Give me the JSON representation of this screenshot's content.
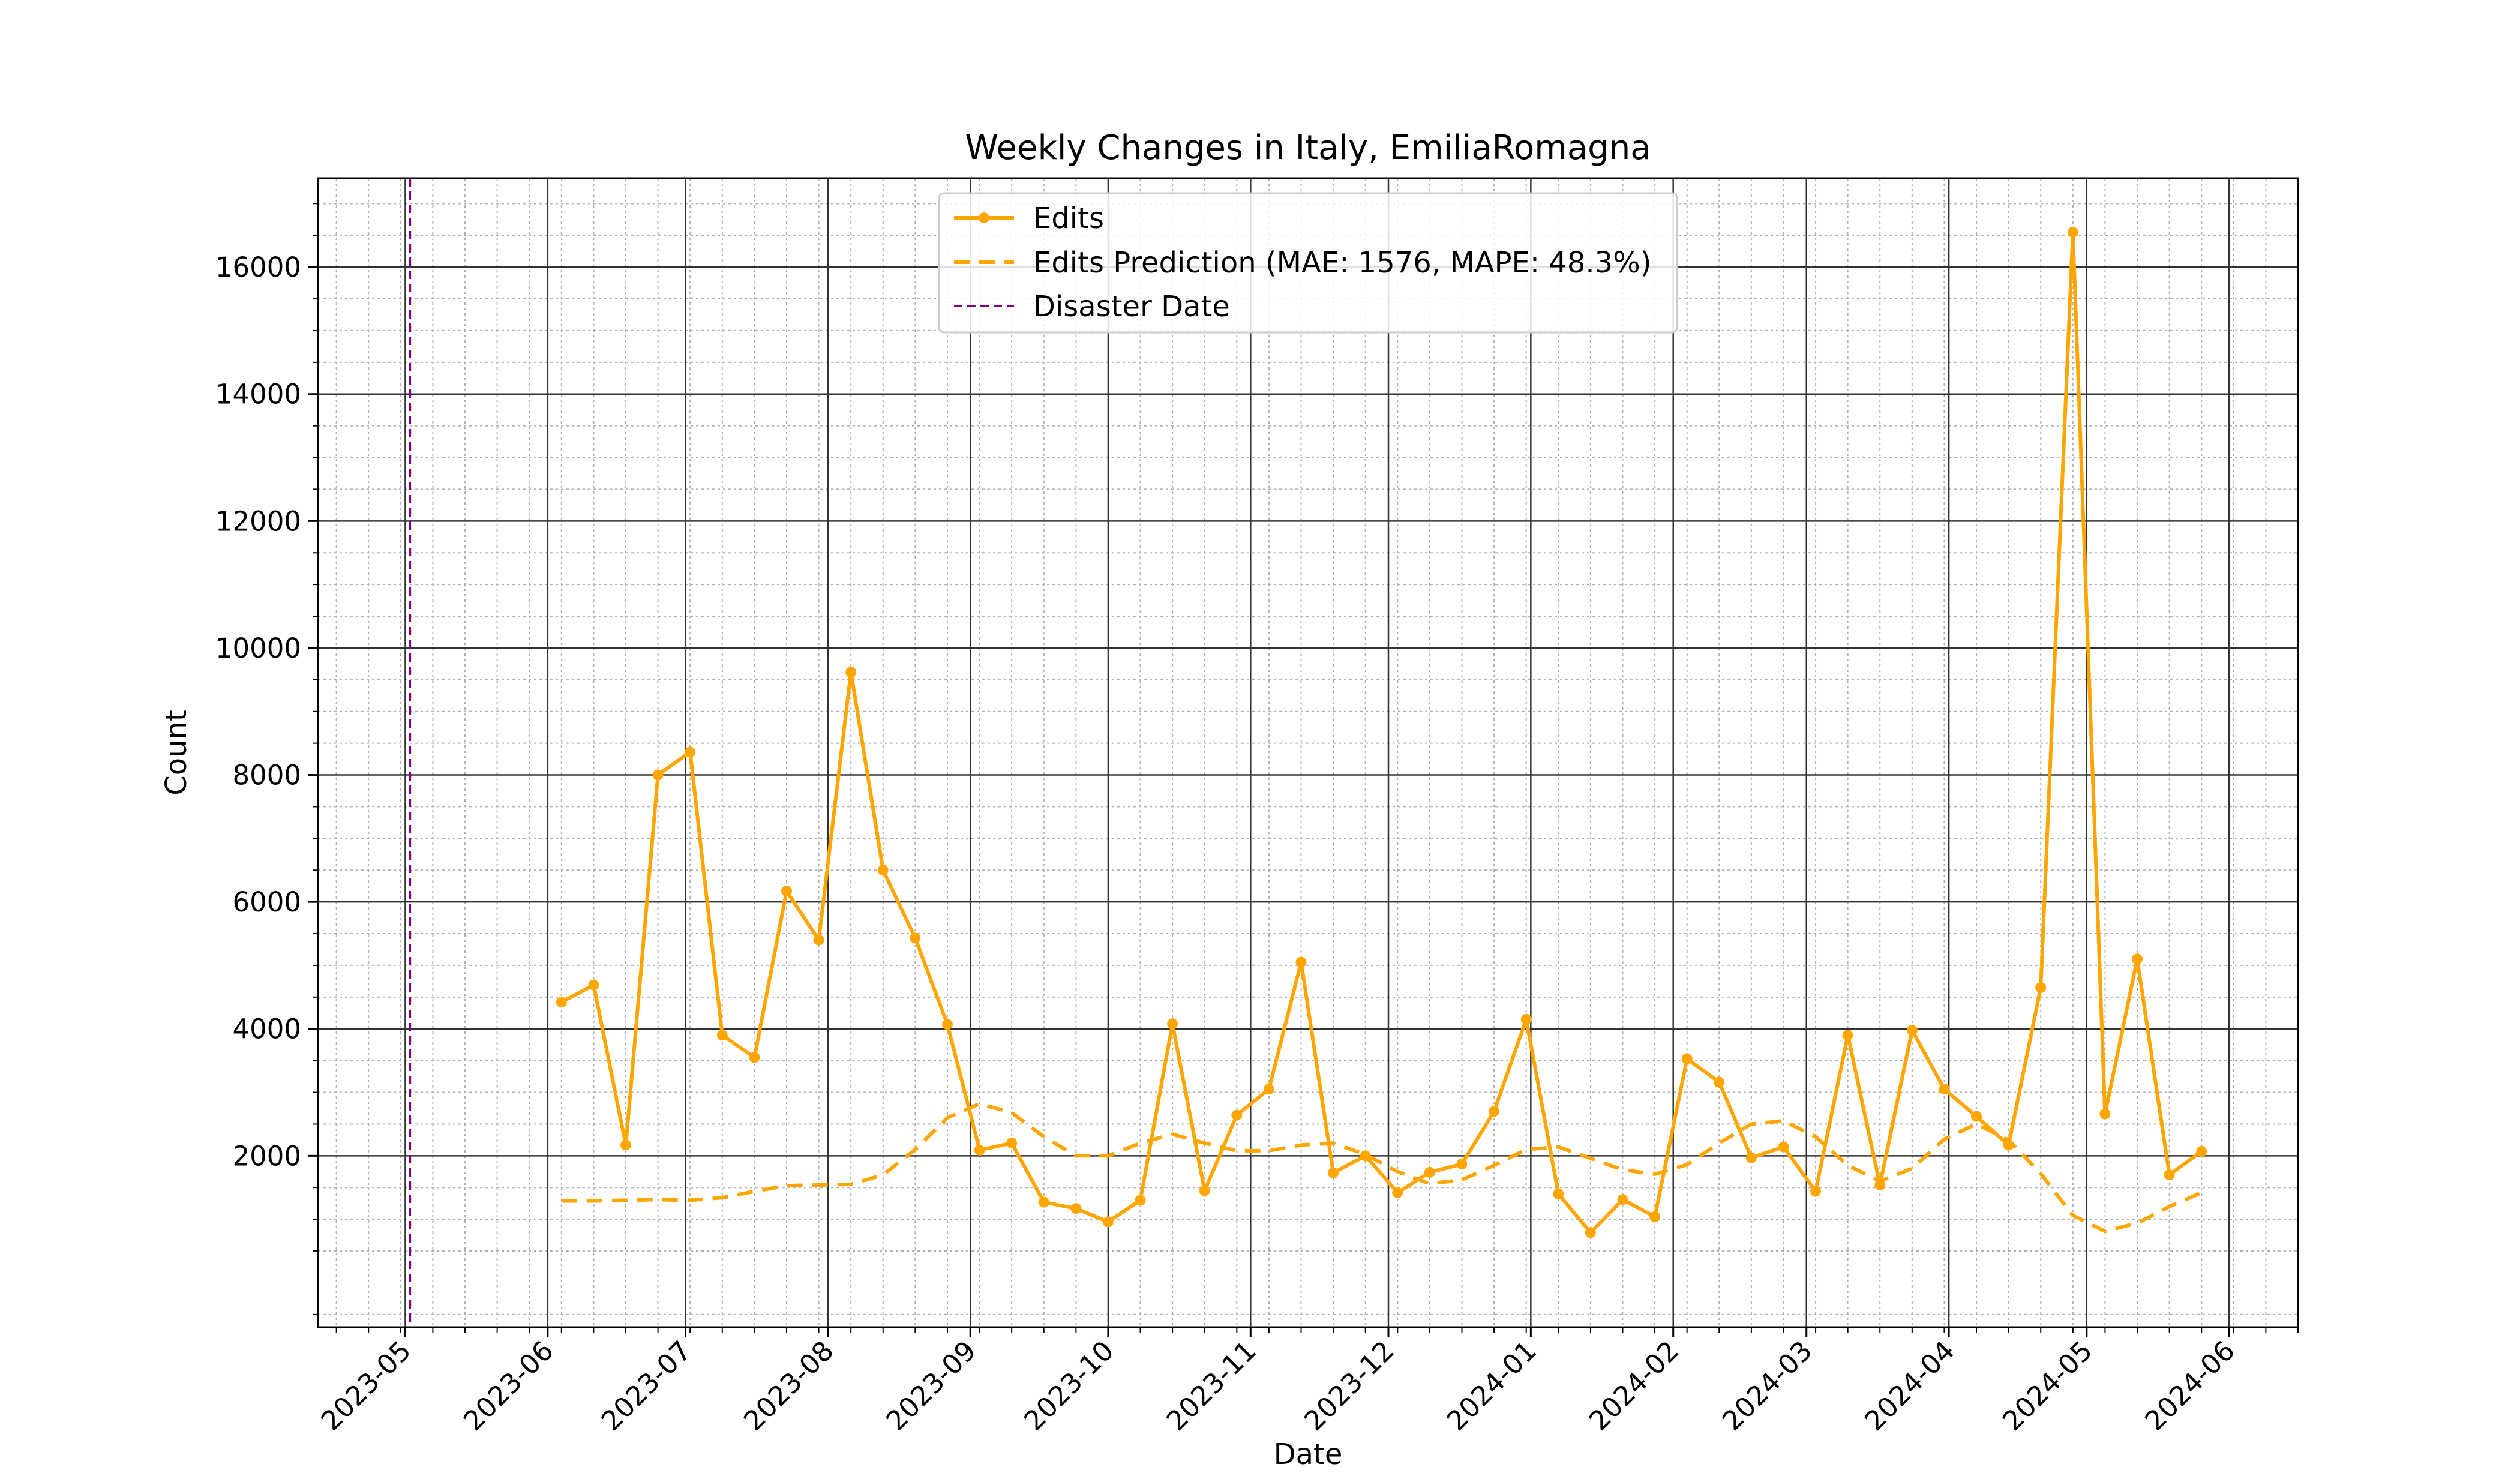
{
  "chart_data": {
    "type": "line",
    "title": "Weekly Changes in Italy, EmiliaRomagna",
    "xlabel": "Date",
    "ylabel": "Count",
    "x_range": [
      "2023-04-12",
      "2024-06-16"
    ],
    "ylim": [
      -700,
      17400
    ],
    "y_ticks": [
      2000,
      4000,
      6000,
      8000,
      10000,
      12000,
      14000,
      16000
    ],
    "x_ticks": [
      "2023-05",
      "2023-06",
      "2023-07",
      "2023-08",
      "2023-09",
      "2023-10",
      "2023-11",
      "2023-12",
      "2024-01",
      "2024-02",
      "2024-03",
      "2024-04",
      "2024-05",
      "2024-06"
    ],
    "grid": {
      "major": true,
      "minor": true
    },
    "legend_position": "top-center",
    "disaster_date": "2023-05-02",
    "x": [
      "2023-06-04",
      "2023-06-11",
      "2023-06-18",
      "2023-06-25",
      "2023-07-02",
      "2023-07-09",
      "2023-07-16",
      "2023-07-23",
      "2023-07-30",
      "2023-08-06",
      "2023-08-13",
      "2023-08-20",
      "2023-08-27",
      "2023-09-03",
      "2023-09-10",
      "2023-09-17",
      "2023-09-24",
      "2023-10-01",
      "2023-10-08",
      "2023-10-15",
      "2023-10-22",
      "2023-10-29",
      "2023-11-05",
      "2023-11-12",
      "2023-11-19",
      "2023-11-26",
      "2023-12-03",
      "2023-12-10",
      "2023-12-17",
      "2023-12-24",
      "2023-12-31",
      "2024-01-07",
      "2024-01-14",
      "2024-01-21",
      "2024-01-28",
      "2024-02-04",
      "2024-02-11",
      "2024-02-18",
      "2024-02-25",
      "2024-03-03",
      "2024-03-10",
      "2024-03-17",
      "2024-03-24",
      "2024-03-31",
      "2024-04-07",
      "2024-04-14",
      "2024-04-21",
      "2024-04-28",
      "2024-05-05",
      "2024-05-12",
      "2024-05-19",
      "2024-05-26"
    ],
    "series": [
      {
        "name": "Edits",
        "color": "#ffa500",
        "style": "solid-marker",
        "values": [
          4420,
          4690,
          2170,
          8000,
          8360,
          3900,
          3550,
          6170,
          5400,
          9620,
          6500,
          5430,
          4070,
          2090,
          2200,
          1270,
          1170,
          960,
          1300,
          4080,
          1450,
          2640,
          3050,
          5050,
          1730,
          2000,
          1420,
          1740,
          1870,
          2700,
          4150,
          1400,
          790,
          1310,
          1040,
          3530,
          3160,
          1970,
          2140,
          1440,
          3900,
          1540,
          3980,
          3050,
          2620,
          2170,
          4650,
          16550,
          2660,
          5100,
          1700,
          2070
        ]
      },
      {
        "name": "Edits Prediction (MAE: 1576, MAPE: 48.3%)",
        "color": "#ffa500",
        "style": "dashed",
        "values": [
          1290,
          1290,
          1300,
          1310,
          1300,
          1340,
          1440,
          1530,
          1540,
          1550,
          1700,
          2100,
          2600,
          2820,
          2680,
          2300,
          2000,
          2000,
          2200,
          2340,
          2200,
          2080,
          2080,
          2170,
          2200,
          2020,
          1750,
          1560,
          1620,
          1850,
          2100,
          2140,
          1960,
          1780,
          1710,
          1860,
          2200,
          2500,
          2550,
          2300,
          1850,
          1600,
          1800,
          2260,
          2500,
          2250,
          1720,
          1060,
          810,
          940,
          1200,
          1420
        ]
      },
      {
        "name": "Disaster Date",
        "color": "#800080",
        "style": "dashed-vertical"
      }
    ]
  }
}
